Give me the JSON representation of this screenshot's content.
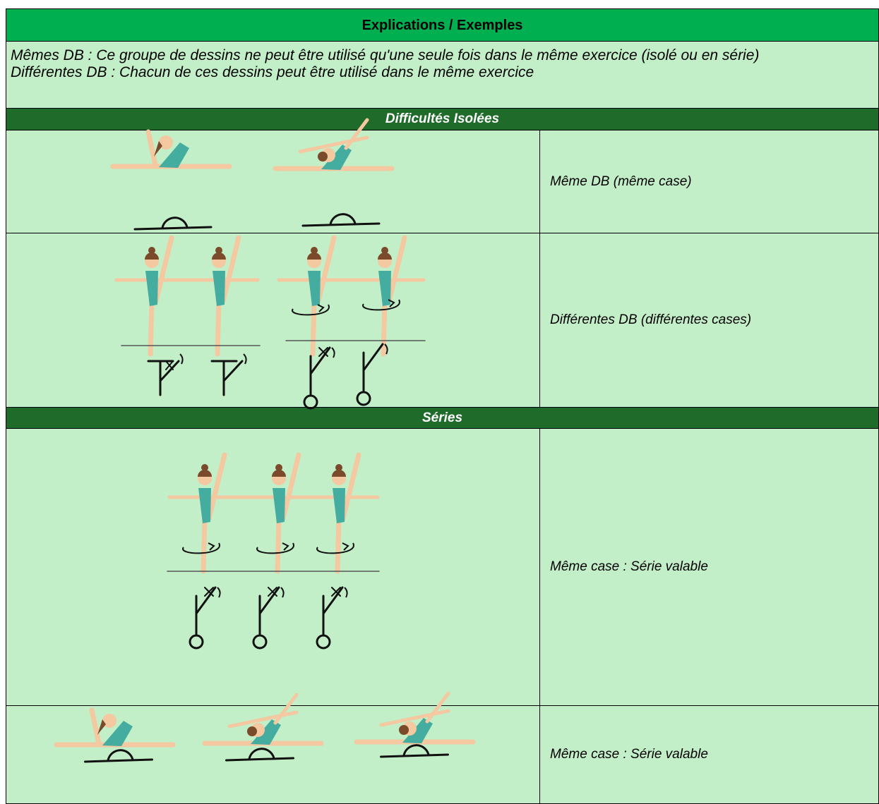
{
  "header": {
    "title": "Explications / Exemples"
  },
  "intro": [
    "Mêmes DB : Ce groupe de dessins ne peut être utilisé qu'une seule fois dans le même exercice (isolé ou en série)",
    "Différentes DB : Chacun de ces dessins peut être utilisé dans le même exercice"
  ],
  "sections": [
    {
      "title": "Difficultés Isolées",
      "rows": [
        {
          "description": "Même DB (même case)"
        },
        {
          "description": "Différentes DB (différentes cases)"
        }
      ]
    },
    {
      "title": "Séries",
      "rows": [
        {
          "description": "Même case : Série valable"
        },
        {
          "description": "Même case : Série valable"
        }
      ]
    }
  ]
}
